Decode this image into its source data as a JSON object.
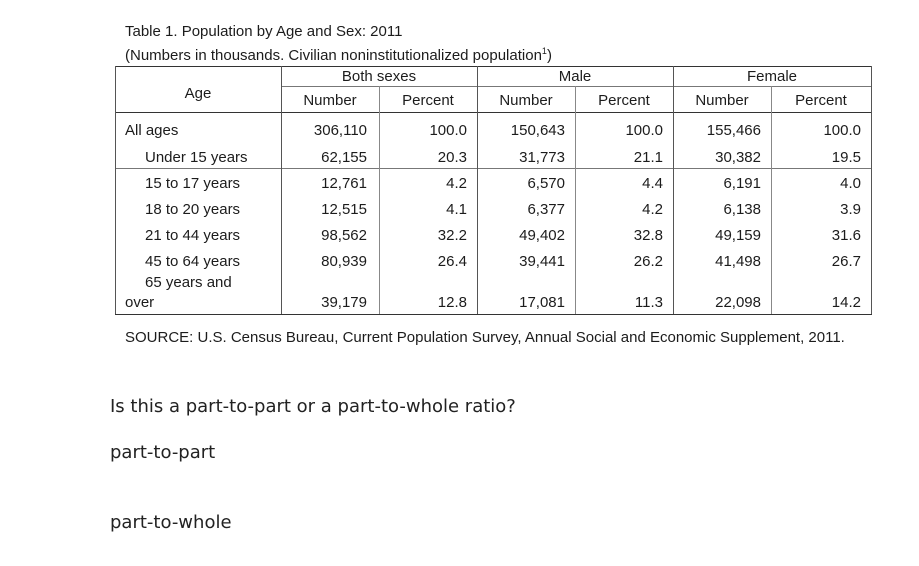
{
  "table": {
    "title": "Table 1. Population by Age and Sex: 2011",
    "subtitle": "(Numbers in thousands. Civilian noninstitutionalized population",
    "subtitle_sup": "1",
    "subtitle_end": ")",
    "age_header": "Age",
    "groups": [
      "Both sexes",
      "Male",
      "Female"
    ],
    "subheaders": [
      "Number",
      "Percent",
      "Number",
      "Percent",
      "Number",
      "Percent"
    ],
    "rows": [
      {
        "label": "All ages",
        "values": [
          "306,110",
          "100.0",
          "150,643",
          "100.0",
          "155,466",
          "100.0"
        ]
      },
      {
        "label": "Under 15 years",
        "values": [
          "62,155",
          "20.3",
          "31,773",
          "21.1",
          "30,382",
          "19.5"
        ]
      },
      {
        "label": "15 to 17 years",
        "values": [
          "12,761",
          "4.2",
          "6,570",
          "4.4",
          "6,191",
          "4.0"
        ]
      },
      {
        "label": "18 to 20 years",
        "values": [
          "12,515",
          "4.1",
          "6,377",
          "4.2",
          "6,138",
          "3.9"
        ]
      },
      {
        "label": "21 to 44 years",
        "values": [
          "98,562",
          "32.2",
          "49,402",
          "32.8",
          "49,159",
          "31.6"
        ]
      },
      {
        "label": "45 to 64 years",
        "values": [
          "80,939",
          "26.4",
          "39,441",
          "26.2",
          "41,498",
          "26.7"
        ]
      },
      {
        "label": "65 years and",
        "label2": "over",
        "values": [
          "39,179",
          "12.8",
          "17,081",
          "11.3",
          "22,098",
          "14.2"
        ]
      }
    ],
    "source": "SOURCE: U.S. Census Bureau, Current Population Survey, Annual Social and Economic Supplement, 2011."
  },
  "question": {
    "prompt": "Is this a part-to-part or a part-to-whole ratio?",
    "options": [
      "part-to-part",
      "part-to-whole"
    ]
  }
}
